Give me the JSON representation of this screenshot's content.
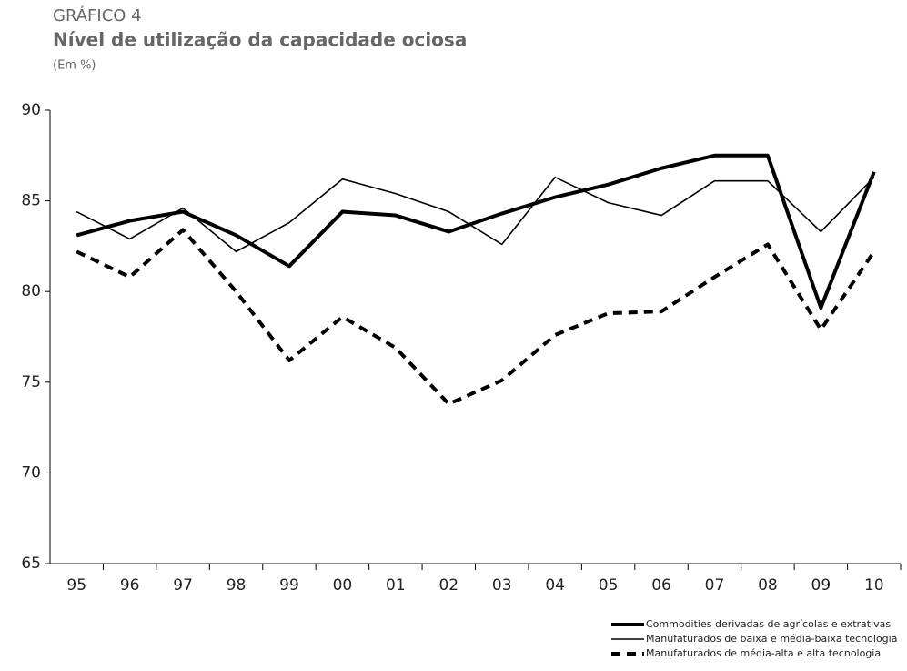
{
  "chart_data": {
    "type": "line",
    "kicker": "GRÁFICO 4",
    "title": "Nível de utilização da capacidade ociosa",
    "subtitle": "(Em %)",
    "categories": [
      "95",
      "96",
      "97",
      "98",
      "99",
      "00",
      "01",
      "02",
      "03",
      "04",
      "05",
      "06",
      "07",
      "08",
      "09",
      "10"
    ],
    "series": [
      {
        "name": "Commodities derivadas de agrícolas e extrativas",
        "color": "#000000",
        "width": 4,
        "dash": "none",
        "values": [
          83.1,
          83.9,
          84.4,
          83.1,
          81.4,
          84.4,
          84.2,
          83.3,
          84.3,
          85.2,
          85.9,
          86.8,
          87.5,
          87.5,
          79.1,
          86.6
        ]
      },
      {
        "name": "Manufaturados de baixa e média-baixa tecnologia",
        "color": "#000000",
        "width": 1.6,
        "dash": "none",
        "values": [
          84.4,
          82.9,
          84.6,
          82.2,
          83.8,
          86.2,
          85.4,
          84.4,
          82.6,
          86.3,
          84.9,
          84.2,
          86.1,
          86.1,
          83.3,
          86.3
        ]
      },
      {
        "name": "Manufaturados de média-alta e alta tecnologia",
        "color": "#000000",
        "width": 4,
        "dash": "10 7",
        "values": [
          82.2,
          80.8,
          83.4,
          80.0,
          76.2,
          78.6,
          76.9,
          73.8,
          75.1,
          77.6,
          78.8,
          78.9,
          80.8,
          82.6,
          77.9,
          82.2
        ]
      }
    ],
    "ylim": [
      65,
      90
    ],
    "yticks": [
      65,
      70,
      75,
      80,
      85,
      90
    ],
    "grid": false,
    "legend": "bottom-right"
  }
}
